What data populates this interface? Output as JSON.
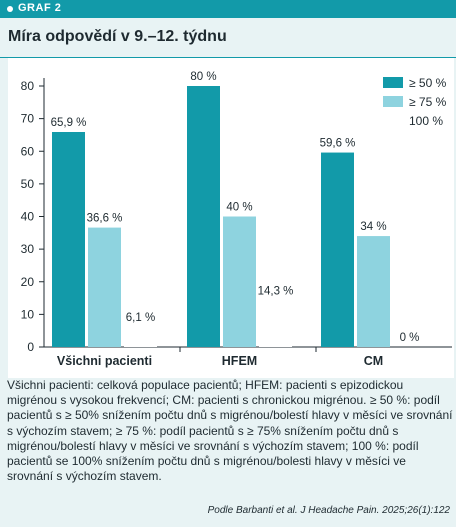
{
  "header": {
    "graf_label": "GRAF 2",
    "title": "Míra odpovědí v 9.–12. týdnu"
  },
  "colors": {
    "header_bar": "#129aa9",
    "background": "#e8f3f4",
    "series_50": "#129aa9",
    "series_75": "#8ed3df",
    "series_100": "#ffffff"
  },
  "chart_data": {
    "type": "bar",
    "title": "Míra odpovědí v 9.–12. týdnu",
    "categories": [
      "Všichni pacienti",
      "HFEM",
      "CM"
    ],
    "series": [
      {
        "name": "≥ 50 %",
        "values": [
          65.9,
          80,
          59.6
        ],
        "labels": [
          "65,9 %",
          "80 %",
          "59,6 %"
        ]
      },
      {
        "name": "≥ 75 %",
        "values": [
          36.6,
          40,
          34
        ],
        "labels": [
          "36,6 %",
          "40 %",
          "34 %"
        ]
      },
      {
        "name": "100 %",
        "values": [
          6.1,
          14.3,
          0
        ],
        "labels": [
          "6,1 %",
          "14,3 %",
          "0 %"
        ]
      }
    ],
    "yticks": [
      "0",
      "10",
      "20",
      "30",
      "40",
      "50",
      "60",
      "70",
      "80"
    ],
    "ylim": [
      0,
      80
    ],
    "xlabel": "",
    "ylabel": "",
    "legend_position": "top-right",
    "grid": false
  },
  "caption": "Všichni pacienti: celková populace pacientů; HFEM: pacienti s epizodickou migrénou s vysokou frekvencí; CM: pacienti s chronickou migrénou. ≥ 50 %: podíl pacientů s ≥ 50% snížením počtu dnů s migrénou/bolestí hlavy v měsíci ve srovnání s výchozím stavem; ≥ 75 %: podíl pacientů s ≥ 75% snížením počtu dnů s migrénou/bolestí hlavy v měsíci ve srovnání s výchozím stavem; 100 %: podíl pacientů se 100% snížením počtu dnů s migrénou/bolesti hlavy v měsíci ve srovnání s výchozím stavem.",
  "source": "Podle Barbanti et al. J Headache Pain. 2025;26(1):122"
}
